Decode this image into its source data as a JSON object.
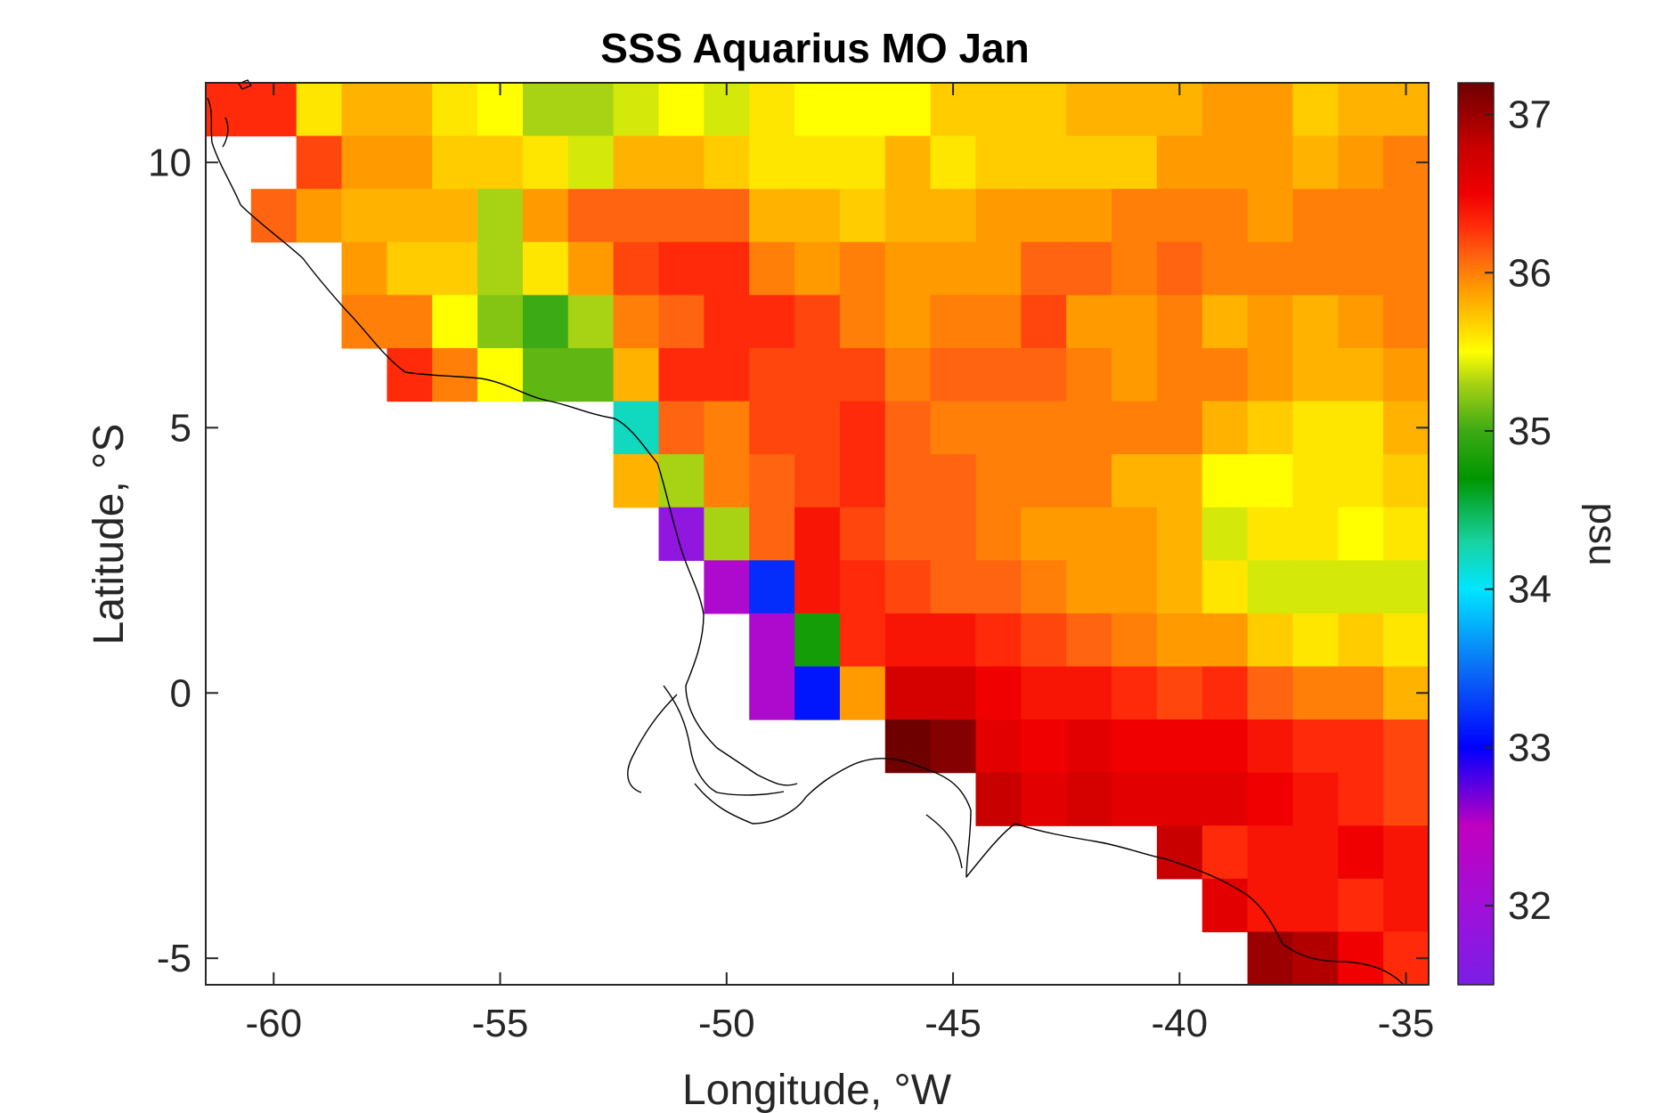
{
  "chart_data": {
    "type": "heatmap",
    "title": "SSS Aquarius MO Jan",
    "xlabel": "Longitude, °W",
    "ylabel": "Latitude, °S",
    "xlim": [
      -61.5,
      -34.5
    ],
    "ylim": [
      -5.5,
      11.5
    ],
    "xticks": [
      -60,
      -55,
      -50,
      -45,
      -40,
      -35
    ],
    "yticks": [
      -5,
      0,
      5,
      10
    ],
    "colorbar": {
      "label": "psu",
      "range": [
        31.5,
        37.2
      ],
      "ticks": [
        32,
        33,
        34,
        35,
        36,
        37
      ]
    },
    "cell_size_deg": 1,
    "lon_start": -61.5,
    "lat_start": 11.5,
    "values": [
      [
        36.3,
        36.3,
        35.6,
        35.8,
        35.8,
        35.6,
        35.5,
        35.3,
        35.3,
        35.4,
        35.5,
        35.4,
        35.6,
        35.5,
        35.5,
        35.5,
        35.7,
        35.7,
        35.7,
        35.8,
        35.8,
        35.8,
        35.9,
        35.9,
        35.7,
        35.8,
        35.8
      ],
      [
        null,
        null,
        36.2,
        35.9,
        35.9,
        35.7,
        35.7,
        35.6,
        35.4,
        35.8,
        35.8,
        35.7,
        35.6,
        35.6,
        35.6,
        35.8,
        35.6,
        35.7,
        35.7,
        35.7,
        35.7,
        35.9,
        35.9,
        35.9,
        35.8,
        35.9,
        36.0
      ],
      [
        null,
        36.1,
        35.9,
        35.8,
        35.8,
        35.8,
        35.3,
        35.9,
        36.1,
        36.1,
        36.1,
        36.1,
        35.8,
        35.8,
        35.7,
        35.8,
        35.8,
        35.9,
        35.9,
        35.9,
        36.0,
        36.0,
        36.0,
        35.9,
        36.0,
        36.0,
        36.0
      ],
      [
        null,
        null,
        null,
        35.9,
        35.7,
        35.7,
        35.3,
        35.6,
        35.9,
        36.2,
        36.3,
        36.3,
        36.0,
        35.9,
        36.0,
        35.9,
        35.9,
        35.9,
        36.1,
        36.1,
        36.0,
        36.1,
        36.0,
        36.0,
        36.0,
        36.0,
        36.0
      ],
      [
        null,
        null,
        null,
        36.0,
        36.0,
        35.5,
        35.2,
        35.0,
        35.3,
        36.0,
        36.1,
        36.3,
        36.3,
        36.2,
        36.0,
        35.9,
        36.0,
        36.0,
        36.2,
        35.9,
        35.9,
        36.0,
        35.8,
        35.9,
        35.8,
        35.9,
        36.0
      ],
      [
        null,
        null,
        null,
        null,
        36.3,
        36.0,
        35.5,
        35.1,
        35.1,
        35.8,
        36.3,
        36.3,
        36.2,
        36.2,
        36.2,
        36.0,
        36.1,
        36.1,
        36.1,
        36.0,
        35.9,
        36.0,
        36.0,
        35.9,
        35.8,
        35.8,
        35.9
      ],
      [
        null,
        null,
        null,
        null,
        null,
        null,
        null,
        null,
        null,
        34.2,
        36.1,
        36.0,
        36.2,
        36.2,
        36.3,
        36.1,
        36.0,
        36.0,
        36.0,
        36.0,
        36.0,
        36.0,
        35.8,
        35.7,
        35.6,
        35.6,
        35.8
      ],
      [
        null,
        null,
        null,
        null,
        null,
        null,
        null,
        null,
        null,
        35.8,
        35.3,
        36.0,
        36.1,
        36.2,
        36.3,
        36.1,
        36.1,
        36.0,
        36.0,
        36.0,
        35.8,
        35.8,
        35.5,
        35.5,
        35.6,
        35.6,
        35.7
      ],
      [
        null,
        null,
        null,
        null,
        null,
        null,
        null,
        null,
        null,
        null,
        31.8,
        35.3,
        36.1,
        36.4,
        36.2,
        36.1,
        36.1,
        36.0,
        35.9,
        35.9,
        35.9,
        35.8,
        35.4,
        35.6,
        35.6,
        35.5,
        35.6
      ],
      [
        null,
        null,
        null,
        null,
        null,
        null,
        null,
        null,
        null,
        null,
        null,
        32.2,
        33.2,
        36.4,
        36.3,
        36.2,
        36.1,
        36.1,
        36.0,
        35.9,
        35.9,
        35.8,
        35.6,
        35.4,
        35.4,
        35.4,
        35.4
      ],
      [
        null,
        null,
        null,
        null,
        null,
        null,
        null,
        null,
        null,
        null,
        null,
        null,
        32.2,
        34.8,
        36.3,
        36.4,
        36.4,
        36.3,
        36.2,
        36.1,
        36.0,
        35.9,
        35.9,
        35.7,
        35.6,
        35.7,
        35.6
      ],
      [
        null,
        null,
        null,
        null,
        null,
        null,
        null,
        null,
        null,
        null,
        null,
        null,
        32.2,
        33.1,
        35.9,
        36.7,
        36.7,
        36.5,
        36.4,
        36.4,
        36.3,
        36.2,
        36.3,
        36.1,
        36.0,
        36.0,
        35.8
      ],
      [
        null,
        null,
        null,
        null,
        null,
        null,
        null,
        null,
        null,
        null,
        null,
        null,
        null,
        null,
        null,
        37.2,
        37.1,
        36.6,
        36.5,
        36.6,
        36.5,
        36.5,
        36.5,
        36.4,
        36.3,
        36.3,
        36.2
      ],
      [
        null,
        null,
        null,
        null,
        null,
        null,
        null,
        null,
        null,
        null,
        null,
        null,
        null,
        null,
        null,
        null,
        null,
        36.8,
        36.6,
        36.7,
        36.6,
        36.6,
        36.6,
        36.5,
        36.4,
        36.3,
        36.2
      ],
      [
        null,
        null,
        null,
        null,
        null,
        null,
        null,
        null,
        null,
        null,
        null,
        null,
        null,
        null,
        null,
        null,
        null,
        null,
        null,
        null,
        null,
        36.8,
        36.3,
        36.4,
        36.4,
        36.5,
        36.4
      ],
      [
        null,
        null,
        null,
        null,
        null,
        null,
        null,
        null,
        null,
        null,
        null,
        null,
        null,
        null,
        null,
        null,
        null,
        null,
        null,
        null,
        null,
        null,
        36.6,
        36.4,
        36.4,
        36.3,
        36.4
      ],
      [
        null,
        null,
        null,
        null,
        null,
        null,
        null,
        null,
        null,
        null,
        null,
        null,
        null,
        null,
        null,
        null,
        null,
        null,
        null,
        null,
        null,
        null,
        null,
        37.0,
        36.9,
        36.5,
        36.3
      ]
    ]
  },
  "colors": {
    "missing": "#ffffff",
    "colormap_stops": [
      {
        "v": 31.5,
        "c": "#7a1ee6"
      },
      {
        "v": 32.0,
        "c": "#a010d8"
      },
      {
        "v": 32.5,
        "c": "#c000c0"
      },
      {
        "v": 33.0,
        "c": "#0000ff"
      },
      {
        "v": 33.5,
        "c": "#0a6ef5"
      },
      {
        "v": 34.0,
        "c": "#00e6ff"
      },
      {
        "v": 34.3,
        "c": "#18d2a0"
      },
      {
        "v": 34.7,
        "c": "#009600"
      },
      {
        "v": 35.0,
        "c": "#3caa14"
      },
      {
        "v": 35.3,
        "c": "#a8d214"
      },
      {
        "v": 35.5,
        "c": "#ffff00"
      },
      {
        "v": 35.7,
        "c": "#ffcc00"
      },
      {
        "v": 35.9,
        "c": "#ff9a00"
      },
      {
        "v": 36.1,
        "c": "#ff6410"
      },
      {
        "v": 36.3,
        "c": "#ff2a0a"
      },
      {
        "v": 36.5,
        "c": "#f00000"
      },
      {
        "v": 36.8,
        "c": "#c80000"
      },
      {
        "v": 37.2,
        "c": "#6e0000"
      }
    ]
  }
}
